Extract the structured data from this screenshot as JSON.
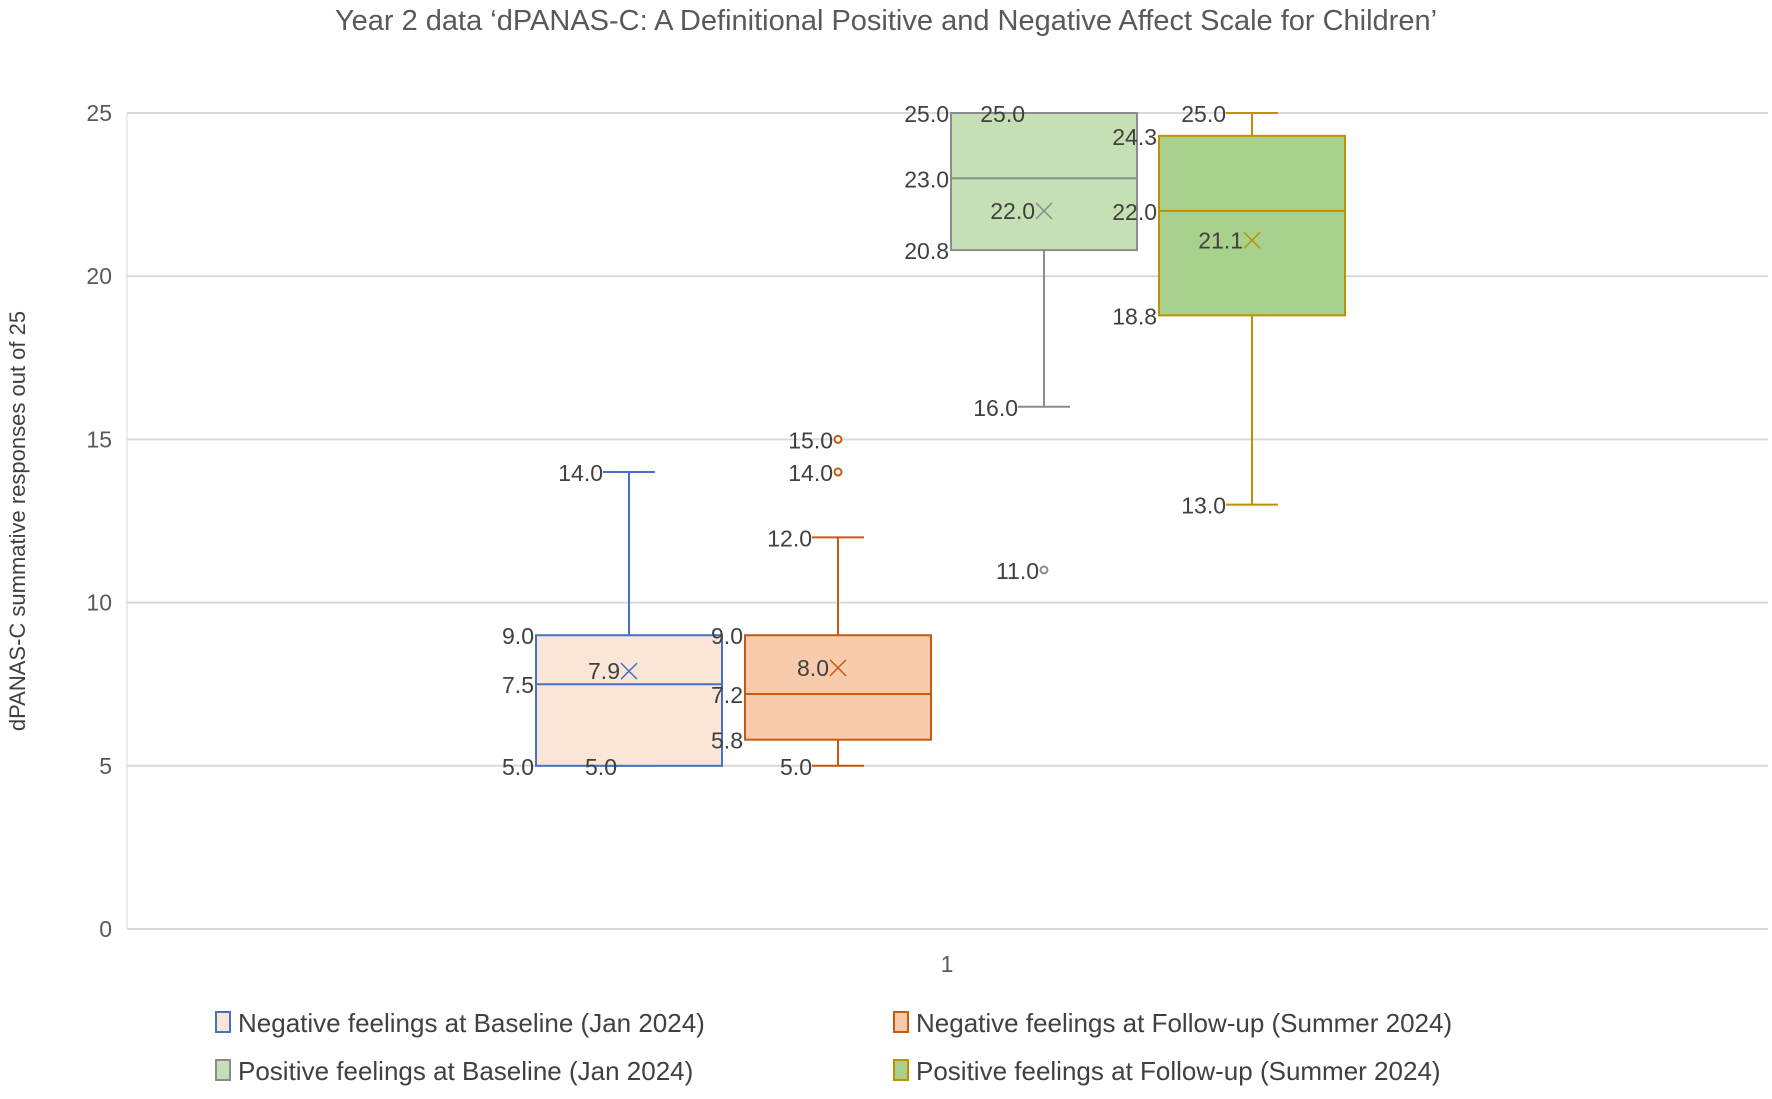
{
  "chart_data": {
    "type": "box",
    "title": "Year 2 data ‘dPANAS-C: A Definitional Positive and Negative Affect Scale for Children’",
    "xlabel": "",
    "ylabel": "dPANAS-C summative responses  out of 25",
    "categories": [
      "1"
    ],
    "ylim": [
      0,
      25
    ],
    "yticks": [
      0,
      5,
      10,
      15,
      20,
      25
    ],
    "grid": true,
    "legend_position": "bottom",
    "series": [
      {
        "name": "Negative feelings at Baseline (Jan 2024)",
        "min": 5.0,
        "q1": 5.0,
        "median": 7.5,
        "q3": 9.0,
        "max": 14.0,
        "mean": 7.9,
        "outliers": [],
        "stroke": "#4472C4",
        "fill": "#FBE5D6"
      },
      {
        "name": "Negative feelings at Follow-up (Summer 2024)",
        "min": 5.0,
        "q1": 5.8,
        "median": 7.2,
        "q3": 9.0,
        "max": 12.0,
        "mean": 8.0,
        "outliers": [
          14.0,
          15.0
        ],
        "stroke": "#C55A11",
        "fill": "#F8CBAD"
      },
      {
        "name": "Positive feelings at Baseline (Jan 2024)",
        "min": 16.0,
        "q1": 20.8,
        "median": 23.0,
        "q3": 25.0,
        "max": 25.0,
        "mean": 22.0,
        "outliers": [
          11.0
        ],
        "stroke": "#8C8C8C",
        "fill": "#C5E0B4"
      },
      {
        "name": "Positive feelings at Follow-up (Summer 2024)",
        "min": 13.0,
        "q1": 18.8,
        "median": 22.0,
        "q3": 24.3,
        "max": 25.0,
        "mean": 21.1,
        "outliers": [],
        "stroke": "#BF9000",
        "fill": "#A9D18E"
      }
    ]
  }
}
